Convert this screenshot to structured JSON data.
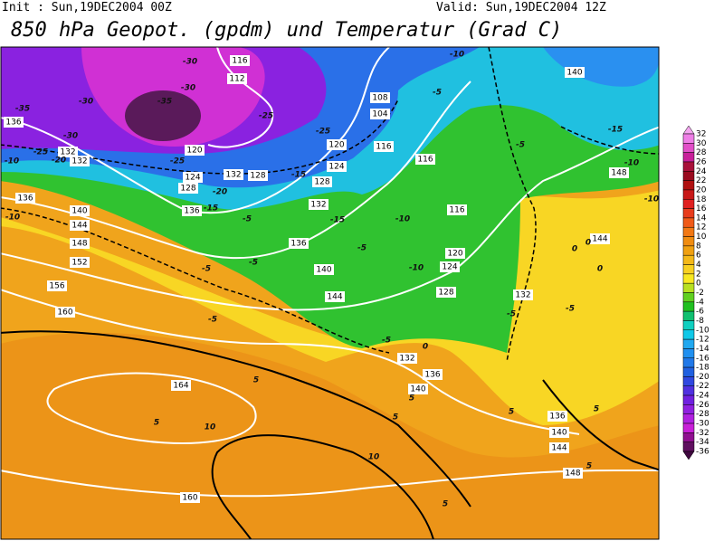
{
  "header": {
    "init": "Init : Sun,19DEC2004 00Z",
    "valid": "Valid: Sun,19DEC2004 12Z",
    "title": "850 hPa Geopot. (gpdm) und Temperatur (Grad C)"
  },
  "colorbar": {
    "labels": [
      32,
      30,
      28,
      26,
      24,
      22,
      20,
      18,
      16,
      14,
      12,
      10,
      8,
      6,
      4,
      2,
      0,
      -2,
      -4,
      -6,
      -8,
      -10,
      -12,
      -14,
      -16,
      -18,
      -20,
      -22,
      -24,
      -26,
      -28,
      -30,
      -32,
      -34,
      -36
    ],
    "colors": [
      "#f4a6f0",
      "#ee7ee6",
      "#e24fc8",
      "#c8209a",
      "#a8103a",
      "#9a0a1e",
      "#b01010",
      "#c81818",
      "#e02020",
      "#e83c1c",
      "#f05a18",
      "#f27814",
      "#f08c10",
      "#f0a010",
      "#f4b818",
      "#f8d020",
      "#f8e820",
      "#b8e020",
      "#60d020",
      "#20c020",
      "#10c070",
      "#10d0c0",
      "#10c8e8",
      "#20a8f0",
      "#2090f0",
      "#2078e8",
      "#2060e0",
      "#3048e0",
      "#5030e0",
      "#7020e0",
      "#9020e0",
      "#b020e0",
      "#c820d8",
      "#901090",
      "#601060",
      "#400840"
    ]
  },
  "geopotential_labels": [
    116,
    112,
    140,
    108,
    104,
    136,
    132,
    132,
    120,
    120,
    116,
    116,
    124,
    132,
    128,
    124,
    128,
    128,
    136,
    132,
    136,
    116,
    140,
    144,
    148,
    152,
    136,
    144,
    120,
    124,
    140,
    148,
    144,
    128,
    132,
    156,
    160,
    132,
    136,
    140,
    164,
    136,
    140,
    144,
    148,
    160
  ],
  "temperature_labels": [
    -30,
    -30,
    -35,
    -30,
    -35,
    -30,
    -25,
    -25,
    -25,
    -20,
    -25,
    -10,
    -20,
    -15,
    -15,
    -5,
    -15,
    -10,
    -10,
    -5,
    -10,
    -5,
    -5,
    -10,
    -5,
    -5,
    -5,
    -5,
    -15,
    -10,
    -5,
    0,
    0,
    0,
    0,
    -5,
    5,
    5,
    5,
    5,
    5,
    10,
    10,
    5,
    5,
    5,
    -10
  ]
}
